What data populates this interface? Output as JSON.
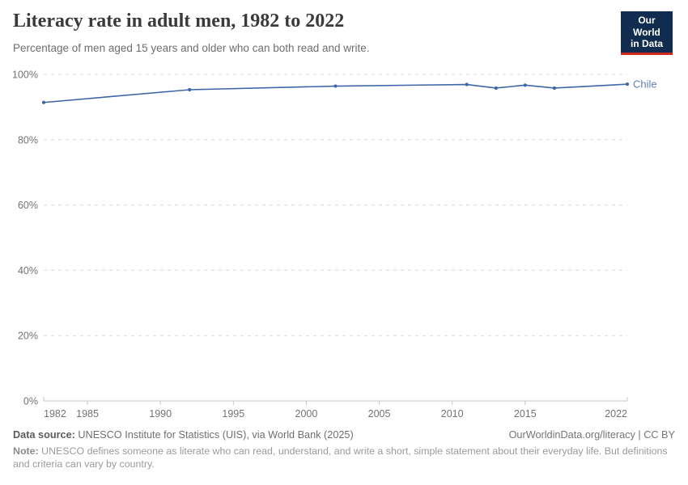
{
  "header": {
    "title": "Literacy rate in adult men, 1982 to 2022",
    "subtitle": "Percentage of men aged 15 years and older who can both read and write.",
    "logo_line1": "Our World",
    "logo_line2": "in Data",
    "logo_bg": "#102d50",
    "logo_accent": "#d0281e"
  },
  "chart_data": {
    "type": "line",
    "title": "Literacy rate in adult men, 1982 to 2022",
    "x": [
      1982,
      1992,
      2002,
      2011,
      2013,
      2015,
      2017,
      2022
    ],
    "series": [
      {
        "name": "Chile",
        "values": [
          91.4,
          95.3,
          96.4,
          96.9,
          95.8,
          96.7,
          95.8,
          97.0
        ],
        "color": "#3e66a6",
        "label_color": "#6080b8"
      }
    ],
    "xlabel": "",
    "ylabel": "",
    "xlim": [
      1982,
      2022
    ],
    "ylim": [
      0,
      100
    ],
    "x_ticks": [
      1982,
      1985,
      1990,
      1995,
      2000,
      2005,
      2010,
      2015,
      2022
    ],
    "y_tick_values": [
      0,
      20,
      40,
      60,
      80,
      100
    ],
    "y_ticks": [
      "0%",
      "20%",
      "40%",
      "60%",
      "80%",
      "100%"
    ],
    "grid": "horizontal dashed",
    "legend": "line-end label"
  },
  "footer": {
    "data_source_label": "Data source:",
    "data_source": "UNESCO Institute for Statistics (UIS), via World Bank (2025)",
    "link": "OurWorldinData.org/literacy | CC BY",
    "note_label": "Note:",
    "note": "UNESCO defines someone as literate who can read, understand, and write a short, simple statement about their everyday life. But definitions and criteria can vary by country."
  }
}
